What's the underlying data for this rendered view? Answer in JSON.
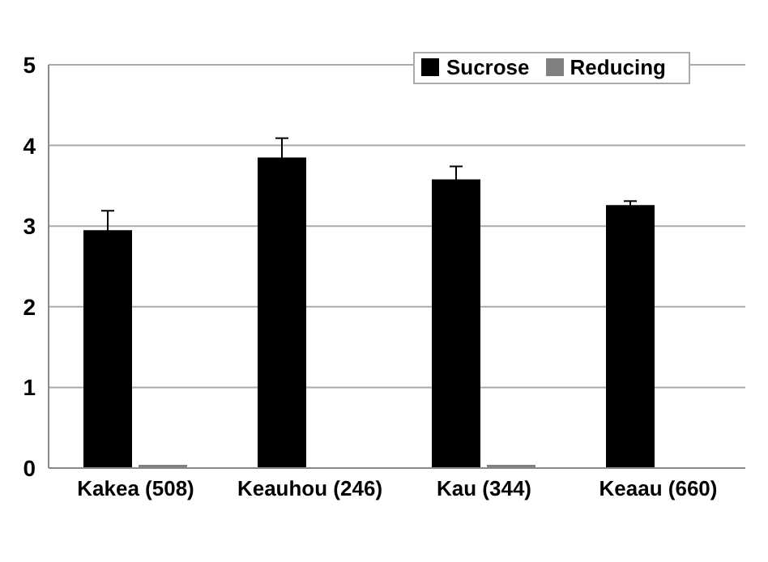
{
  "chart_data": {
    "type": "bar",
    "categories": [
      "Kakea (508)",
      "Keauhou (246)",
      "Kau (344)",
      "Keaau (660)"
    ],
    "series": [
      {
        "name": "Sucrose",
        "color": "#000000",
        "values": [
          2.95,
          3.85,
          3.58,
          3.26
        ],
        "errors": [
          0.24,
          0.24,
          0.16,
          0.05
        ]
      },
      {
        "name": "Reducing",
        "color": "#808080",
        "values": [
          0.04,
          0.01,
          0.04,
          0.01
        ]
      }
    ],
    "ylim": [
      0,
      5
    ],
    "yticks": [
      0,
      1,
      2,
      3,
      4,
      5
    ],
    "grid": "y",
    "legend": "top right"
  }
}
